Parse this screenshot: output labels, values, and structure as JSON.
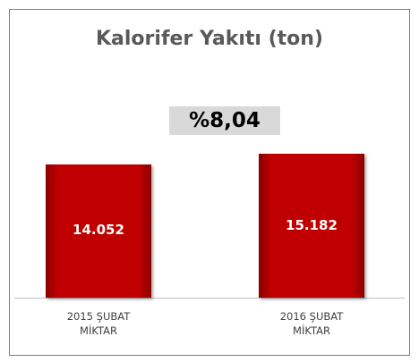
{
  "chart_data": {
    "type": "bar",
    "title": "Kalorifer Yakıtı (ton)",
    "annotation": "%8,04",
    "categories": [
      "2015 ŞUBAT MİKTAR",
      "2016 ŞUBAT MİKTAR"
    ],
    "values": [
      14052,
      15182
    ],
    "value_labels": [
      "14.052",
      "15.182"
    ],
    "color": "#c00000"
  }
}
